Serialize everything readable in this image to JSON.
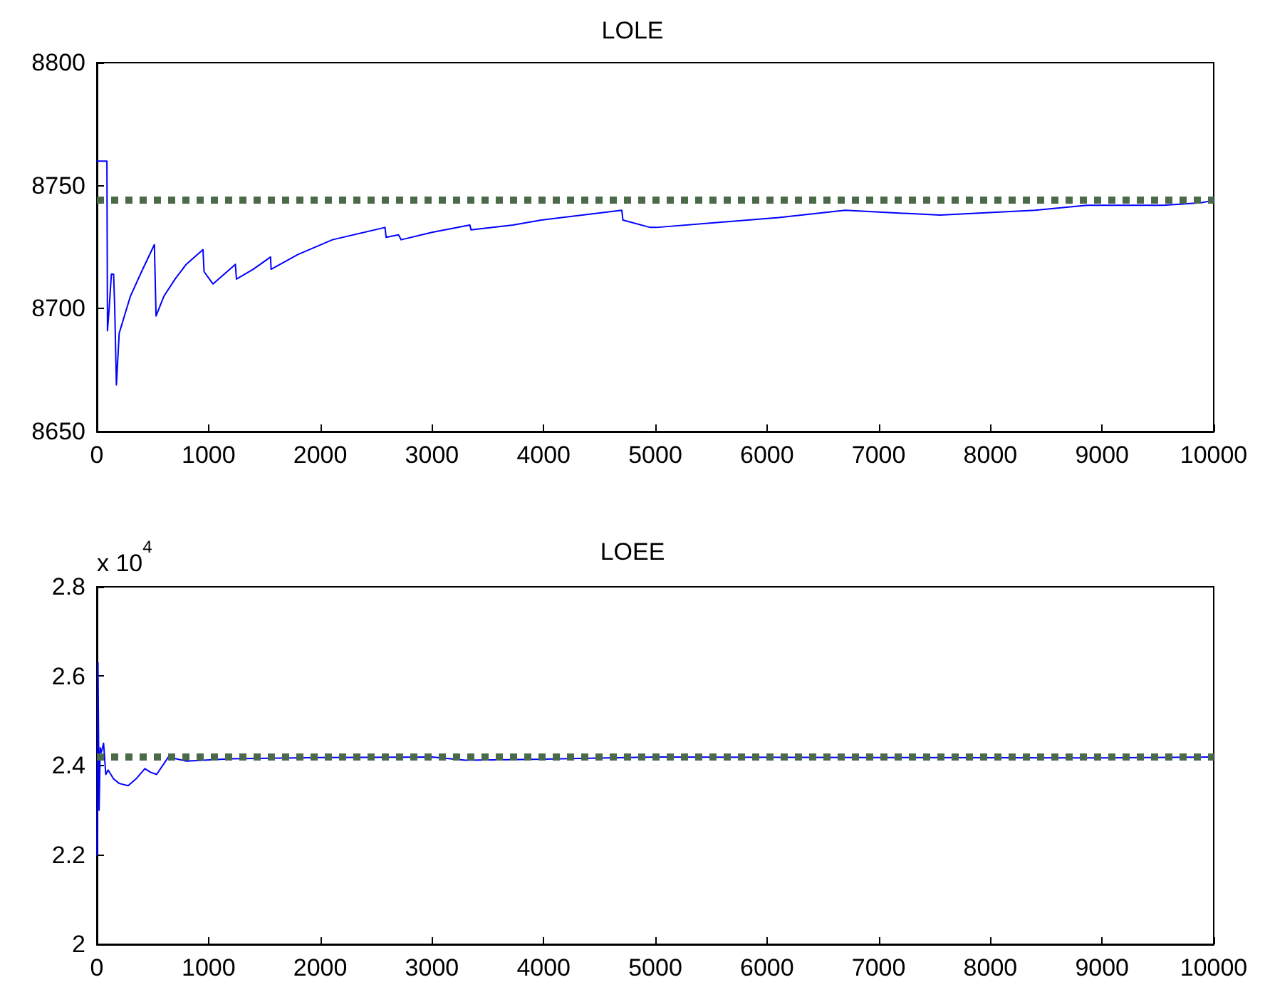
{
  "chart_data": [
    {
      "type": "line",
      "title": "LOLE",
      "xlim": [
        0,
        10000
      ],
      "xticks": [
        0,
        1000,
        2000,
        3000,
        4000,
        5000,
        6000,
        7000,
        8000,
        9000,
        10000
      ],
      "ylim": [
        8650,
        8800
      ],
      "yticks": [
        8650,
        8700,
        8750,
        8800
      ],
      "grid": false,
      "marker": "none",
      "line_style": "solid",
      "series": [
        {
          "color": "#0000ff",
          "x": [
            0,
            90,
            95,
            110,
            130,
            150,
            160,
            175,
            200,
            300,
            400,
            515,
            530,
            600,
            700,
            800,
            950,
            960,
            1040,
            1240,
            1250,
            1400,
            1555,
            1560,
            1800,
            2110,
            2580,
            2590,
            2700,
            2725,
            3000,
            3340,
            3350,
            3725,
            3980,
            4700,
            4710,
            4955,
            5010,
            5550,
            6105,
            6700,
            7550,
            8400,
            8870,
            9550,
            9885,
            10000
          ],
          "values": [
            8760,
            8760,
            8691,
            8700,
            8714,
            8714,
            8700,
            8669,
            8690,
            8705,
            8715,
            8726,
            8697,
            8705,
            8712,
            8718,
            8724,
            8715,
            8710,
            8718,
            8712,
            8716,
            8721,
            8716,
            8722,
            8728,
            8733,
            8729,
            8730,
            8728,
            8731,
            8734,
            8732,
            8734,
            8736,
            8740,
            8736,
            8733,
            8733,
            8735,
            8737,
            8740,
            8738,
            8740,
            8742,
            8742,
            8743,
            8744
          ]
        }
      ],
      "ref_lines": [
        {
          "axis": "y",
          "value": 8744,
          "color": "#4a6a4a",
          "line_style": "dotted"
        }
      ]
    },
    {
      "type": "line",
      "title": "LOEE",
      "annotations": [
        "x 10$^{4}$"
      ],
      "xlim": [
        0,
        10000
      ],
      "xticks": [
        0,
        1000,
        2000,
        3000,
        4000,
        5000,
        6000,
        7000,
        8000,
        9000,
        10000
      ],
      "ylim": [
        2,
        2.8
      ],
      "yticks": [
        2,
        2.2,
        2.4,
        2.6,
        2.8
      ],
      "grid": false,
      "marker": "none",
      "line_style": "solid",
      "series": [
        {
          "color": "#0000ff",
          "x": [
            0,
            10,
            20,
            30,
            40,
            60,
            80,
            100,
            150,
            200,
            280,
            350,
            430,
            480,
            535,
            640,
            800,
            1200,
            2000,
            3000,
            3300,
            3700,
            5000,
            7000,
            9000,
            10000
          ],
          "values": [
            2.2,
            2.63,
            2.3,
            2.44,
            2.43,
            2.45,
            2.38,
            2.39,
            2.37,
            2.36,
            2.355,
            2.37,
            2.393,
            2.385,
            2.38,
            2.419,
            2.41,
            2.415,
            2.418,
            2.419,
            2.412,
            2.413,
            2.419,
            2.418,
            2.417,
            2.419
          ]
        }
      ],
      "ref_lines": [
        {
          "axis": "y",
          "value": 2.419,
          "color": "#4a6a4a",
          "line_style": "dotted"
        }
      ]
    }
  ]
}
